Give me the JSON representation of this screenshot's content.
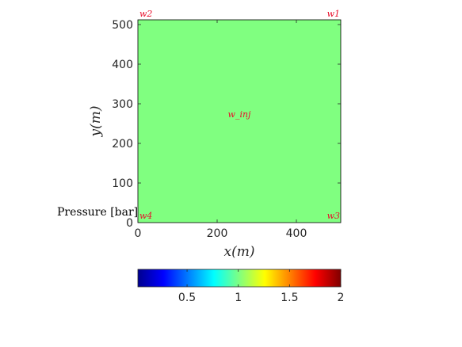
{
  "chart_data": {
    "type": "heatmap",
    "title": "",
    "xlabel": "x(m)",
    "ylabel": "y(m)",
    "xlim": [
      0,
      512
    ],
    "ylim": [
      0,
      512
    ],
    "x_ticks": [
      0,
      200,
      400
    ],
    "y_ticks": [
      0,
      100,
      200,
      300,
      400,
      500
    ],
    "field_value": 1.1,
    "field_color": "#80ff80",
    "colorbar": {
      "label": "Pressure [bar]",
      "range": [
        0.02,
        2.0
      ],
      "ticks": [
        0.5,
        1,
        1.5,
        2
      ],
      "tick_labels": [
        "0.5",
        "1",
        "1.5",
        "2"
      ],
      "colormap": "jet"
    },
    "wells": [
      {
        "name": "w1",
        "x": 512,
        "y": 512,
        "anchor": "end"
      },
      {
        "name": "w2",
        "x": 0,
        "y": 512,
        "anchor": "start"
      },
      {
        "name": "w3",
        "x": 512,
        "y": 0,
        "anchor": "end"
      },
      {
        "name": "w4",
        "x": 0,
        "y": 0,
        "anchor": "start"
      },
      {
        "name": "w_inj",
        "x": 256,
        "y": 256,
        "anchor": "middle",
        "display": "w_inj"
      }
    ]
  }
}
